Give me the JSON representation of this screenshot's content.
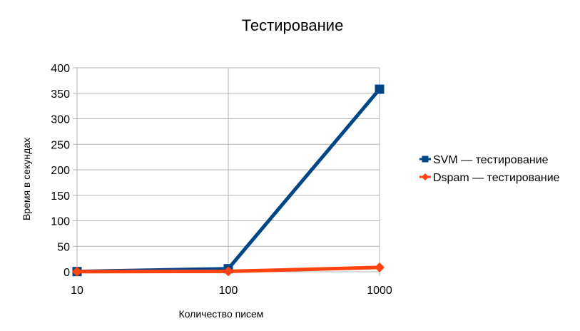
{
  "chart_data": {
    "type": "line",
    "title": "Тестирование",
    "xlabel": "Количество писем",
    "ylabel": "Время в секундах",
    "x_scale": "log",
    "categories": [
      "10",
      "100",
      "1000"
    ],
    "x": [
      10,
      100,
      1000
    ],
    "ylim": [
      0,
      400
    ],
    "yticks": [
      "0",
      "50",
      "100",
      "150",
      "200",
      "250",
      "300",
      "350",
      "400"
    ],
    "ytick_values": [
      0,
      50,
      100,
      150,
      200,
      250,
      300,
      350,
      400
    ],
    "grid": true,
    "legend_position": "right",
    "series": [
      {
        "name": "SVM — тестирование",
        "values": [
          0.5,
          6,
          358
        ],
        "color": "#004586",
        "marker": "square"
      },
      {
        "name": "Dspam — тестирование",
        "values": [
          0.3,
          0.8,
          8.5
        ],
        "color": "#ff420e",
        "marker": "diamond"
      }
    ]
  }
}
